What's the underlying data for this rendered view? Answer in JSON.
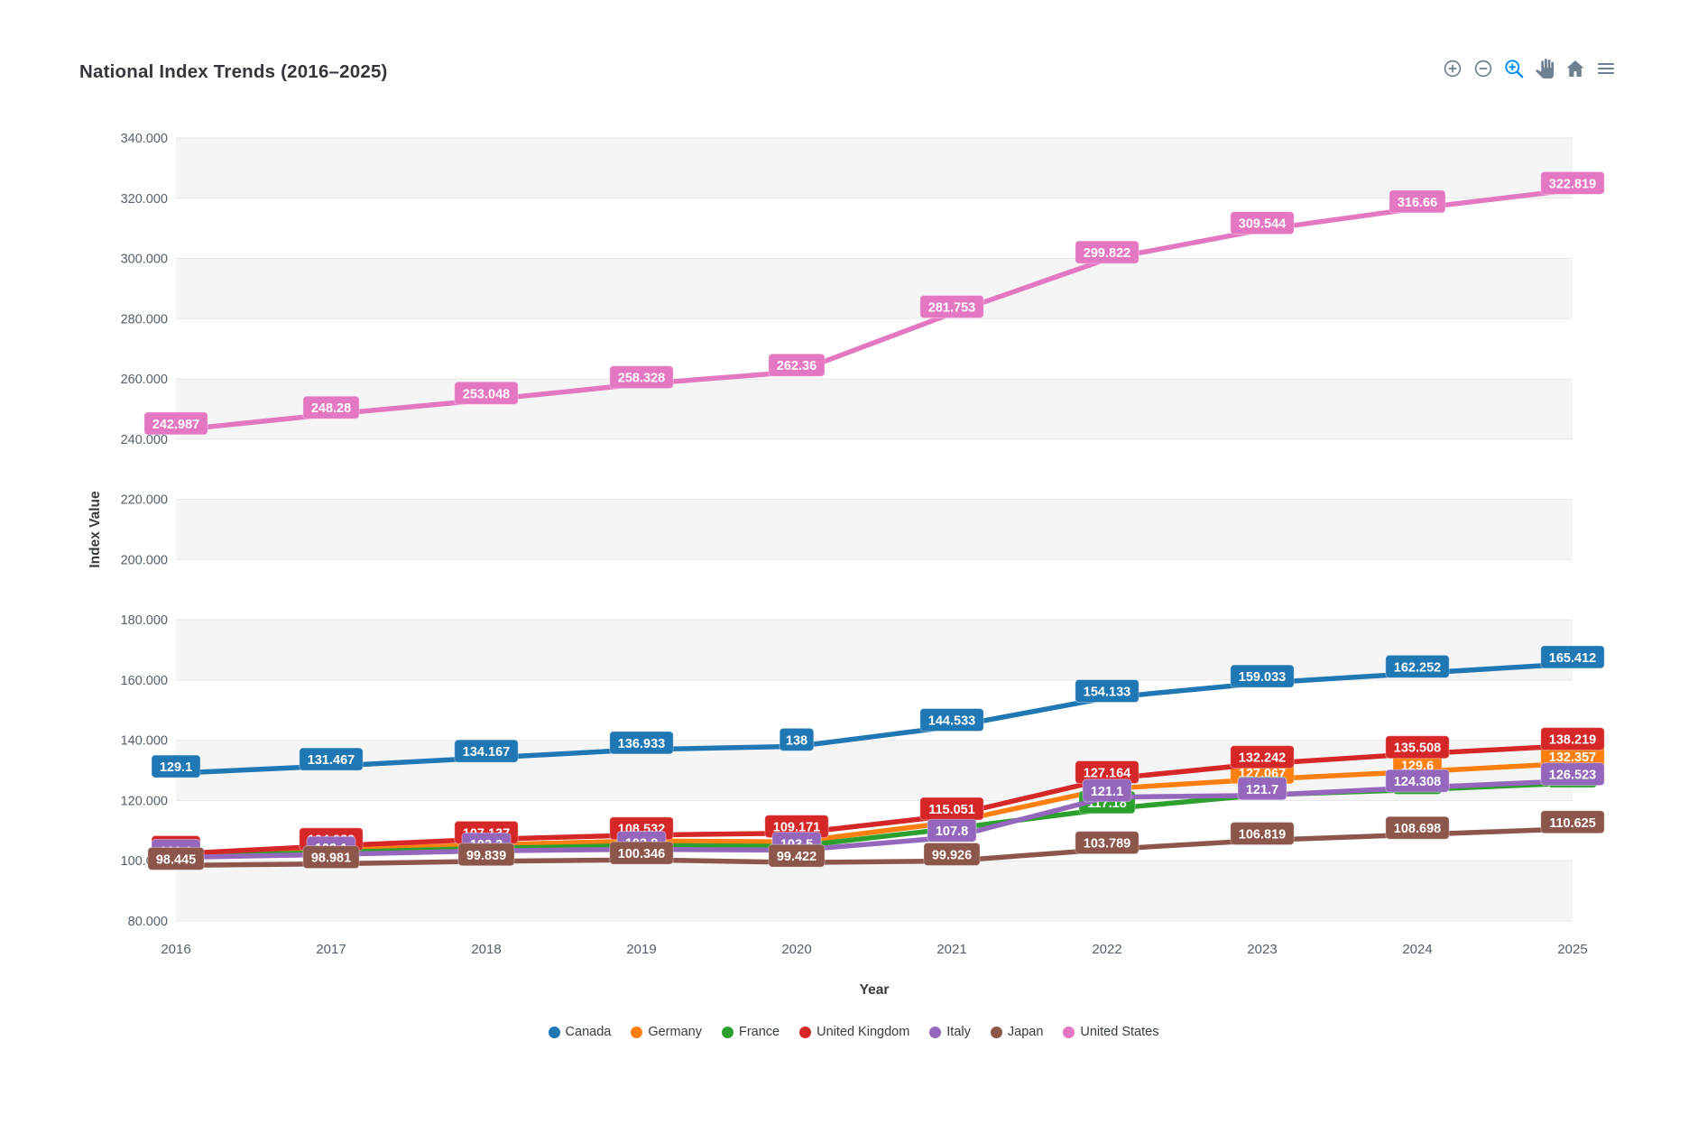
{
  "page": {
    "title": "National Index Trends (2016–2025)"
  },
  "toolbar": {
    "icon_color": "#6e8192",
    "active_color": "#008ffb",
    "icons": [
      {
        "name": "zoom-in",
        "active": false
      },
      {
        "name": "zoom-out",
        "active": false
      },
      {
        "name": "selection-zoom",
        "active": true
      },
      {
        "name": "pan",
        "active": false
      },
      {
        "name": "home",
        "active": false
      },
      {
        "name": "menu",
        "active": false
      }
    ]
  },
  "chart_data": {
    "type": "line",
    "title": "National Index Trends (2016–2025)",
    "xlabel": "Year",
    "ylabel": "Index Value",
    "x": [
      2016,
      2017,
      2018,
      2019,
      2020,
      2021,
      2022,
      2023,
      2024,
      2025
    ],
    "ylim": [
      80,
      340
    ],
    "ytick_step": 20,
    "ytick_format": "fixed-3-decimals",
    "grid": {
      "horizontal_gridlines": true,
      "alternating_bands": true,
      "band_color": "#f5f5f5",
      "gridline_color": "#e7e7e7"
    },
    "legend_position": "bottom",
    "data_labels": {
      "visible": true,
      "style": "colored-pill-white-text"
    },
    "series": [
      {
        "name": "Canada",
        "color": "#1f77b4",
        "values": [
          129.1,
          131.467,
          134.167,
          136.933,
          138,
          144.533,
          154.133,
          159.033,
          162.252,
          165.412
        ]
      },
      {
        "name": "Germany",
        "color": "#ff7f0e",
        "values": [
          101.9,
          103.6,
          105.3,
          106.6,
          106.3,
          112.8,
          123.9,
          127.067,
          129.6,
          132.357
        ]
      },
      {
        "name": "France",
        "color": "#2ca02c",
        "values": [
          101.4,
          102.8,
          104.1,
          105.1,
          104.8,
          110.7,
          117.18,
          121.9,
          123.6,
          125.8
        ]
      },
      {
        "name": "United Kingdom",
        "color": "#d62728",
        "values": [
          102.3,
          104.939,
          107.137,
          108.532,
          109.171,
          115.051,
          127.164,
          132.242,
          135.508,
          138.219
        ]
      },
      {
        "name": "Italy",
        "color": "#9467bd",
        "values": [
          101.1,
          102.1,
          103.3,
          103.8,
          103.5,
          107.8,
          121.1,
          121.7,
          124.308,
          126.523
        ]
      },
      {
        "name": "Japan",
        "color": "#8c564b",
        "values": [
          98.445,
          98.981,
          99.839,
          100.346,
          99.422,
          99.926,
          103.789,
          106.819,
          108.698,
          110.625
        ]
      },
      {
        "name": "United States",
        "color": "#e377c2",
        "values": [
          242.987,
          248.28,
          253.048,
          258.328,
          262.36,
          281.753,
          299.822,
          309.544,
          316.66,
          322.819
        ]
      }
    ]
  }
}
